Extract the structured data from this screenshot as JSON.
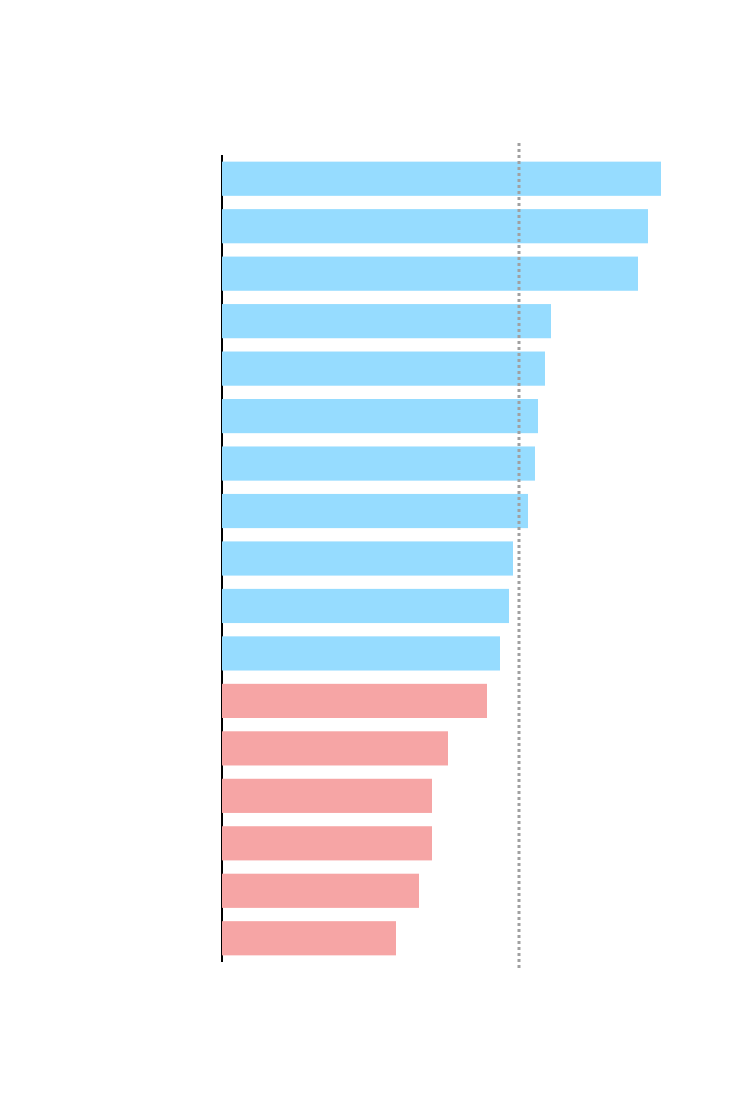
{
  "chart_data": {
    "type": "barh",
    "categories": [
      null,
      null,
      null,
      null,
      null,
      null,
      null,
      null,
      null,
      null,
      null,
      null,
      null,
      null,
      null,
      null,
      null
    ],
    "values": [
      439,
      426,
      416,
      329,
      323,
      316,
      313,
      306,
      291,
      287,
      278,
      265,
      226,
      210,
      210,
      197,
      174
    ],
    "colors": [
      "#96dcff",
      "#96dcff",
      "#96dcff",
      "#96dcff",
      "#96dcff",
      "#96dcff",
      "#96dcff",
      "#96dcff",
      "#96dcff",
      "#96dcff",
      "#96dcff",
      "#f6a5a5",
      "#f6a5a5",
      "#f6a5a5",
      "#f6a5a5",
      "#f6a5a5",
      "#f6a5a5"
    ],
    "xlim": [
      0,
      500
    ],
    "reference_line": 297,
    "reference_color": "#a0a0a0"
  }
}
